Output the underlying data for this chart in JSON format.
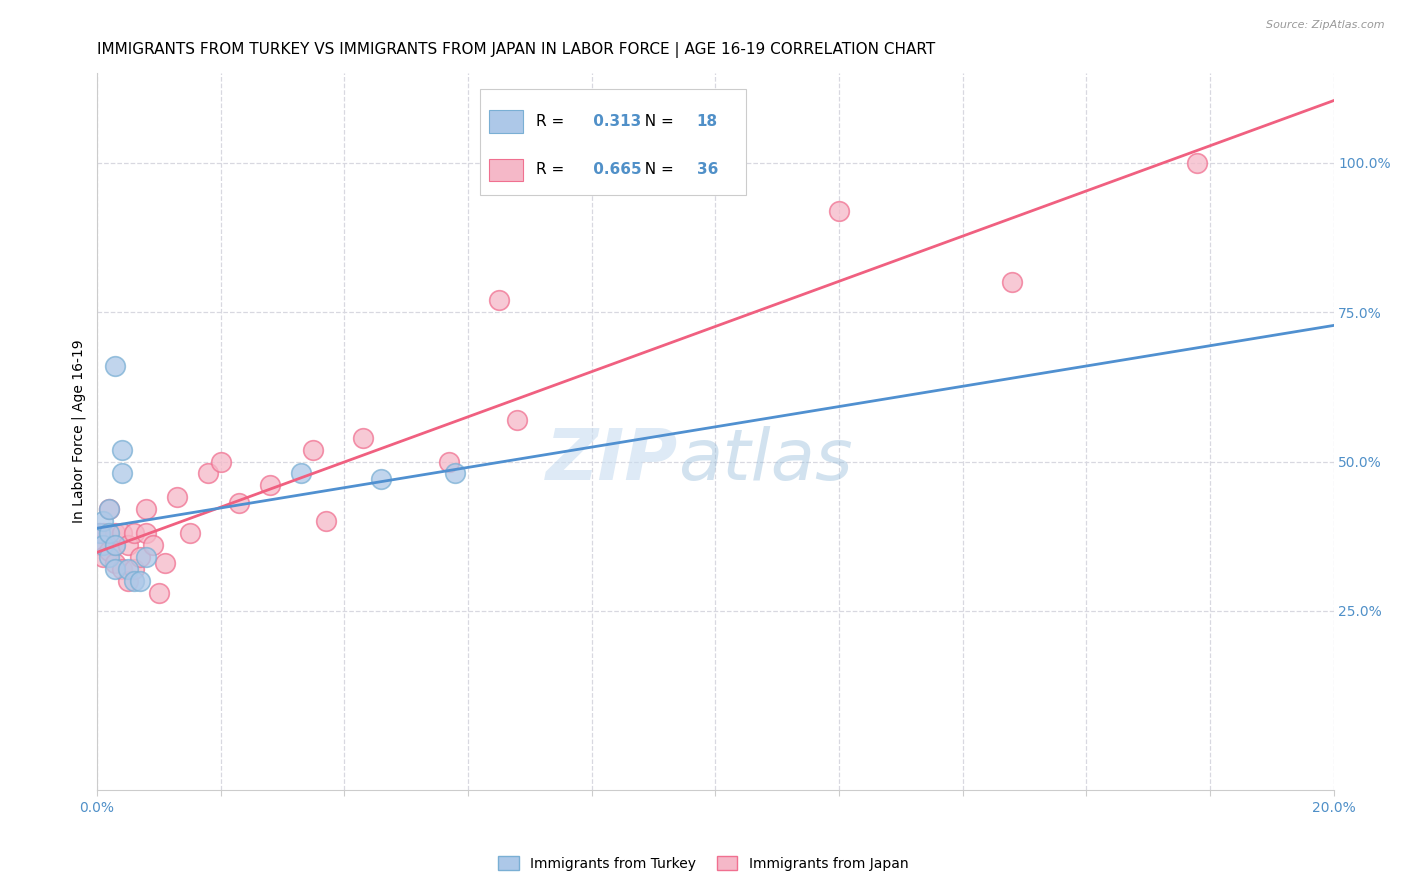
{
  "title": "IMMIGRANTS FROM TURKEY VS IMMIGRANTS FROM JAPAN IN LABOR FORCE | AGE 16-19 CORRELATION CHART",
  "source": "Source: ZipAtlas.com",
  "ylabel": "In Labor Force | Age 16-19",
  "r_turkey": 0.313,
  "n_turkey": 18,
  "r_japan": 0.665,
  "n_japan": 36,
  "color_turkey_face": "#adc8e8",
  "color_turkey_edge": "#7aafd4",
  "color_japan_face": "#f5b8c8",
  "color_japan_edge": "#f07090",
  "color_turkey_line": "#5090d0",
  "color_japan_line": "#f06080",
  "color_text_blue": "#5090c8",
  "turkey_x": [
    0.0005,
    0.001,
    0.001,
    0.002,
    0.002,
    0.002,
    0.003,
    0.003,
    0.003,
    0.004,
    0.004,
    0.005,
    0.006,
    0.007,
    0.008,
    0.033,
    0.046,
    0.058
  ],
  "turkey_y": [
    0.38,
    0.36,
    0.4,
    0.34,
    0.38,
    0.42,
    0.32,
    0.36,
    0.66,
    0.48,
    0.52,
    0.32,
    0.3,
    0.3,
    0.34,
    0.48,
    0.47,
    0.48
  ],
  "japan_x": [
    0.0003,
    0.0005,
    0.001,
    0.001,
    0.002,
    0.002,
    0.003,
    0.003,
    0.003,
    0.004,
    0.004,
    0.005,
    0.005,
    0.006,
    0.006,
    0.007,
    0.008,
    0.008,
    0.009,
    0.01,
    0.011,
    0.013,
    0.015,
    0.018,
    0.02,
    0.023,
    0.028,
    0.035,
    0.037,
    0.043,
    0.057,
    0.065,
    0.068,
    0.12,
    0.148,
    0.178
  ],
  "japan_y": [
    0.38,
    0.36,
    0.34,
    0.38,
    0.35,
    0.42,
    0.33,
    0.36,
    0.38,
    0.32,
    0.38,
    0.3,
    0.36,
    0.32,
    0.38,
    0.34,
    0.38,
    0.42,
    0.36,
    0.28,
    0.33,
    0.44,
    0.38,
    0.48,
    0.5,
    0.43,
    0.46,
    0.52,
    0.4,
    0.54,
    0.5,
    0.77,
    0.57,
    0.92,
    0.8,
    1.0
  ],
  "xmin": 0.0,
  "xmax": 0.2,
  "ymin": -0.05,
  "ymax": 1.15,
  "yplot_min": 0.0,
  "yplot_max": 1.1,
  "yticks_right": [
    0.25,
    0.5,
    0.75,
    1.0
  ],
  "ytick_labels_right": [
    "25.0%",
    "50.0%",
    "75.0%",
    "100.0%"
  ],
  "xtick_vals": [
    0.0,
    0.02,
    0.04,
    0.06,
    0.08,
    0.1,
    0.12,
    0.14,
    0.16,
    0.18,
    0.2
  ],
  "grid_color": "#d8d8e0",
  "background_color": "#ffffff",
  "title_fontsize": 11,
  "axis_label_fontsize": 10,
  "tick_fontsize": 10,
  "marker_size": 200
}
